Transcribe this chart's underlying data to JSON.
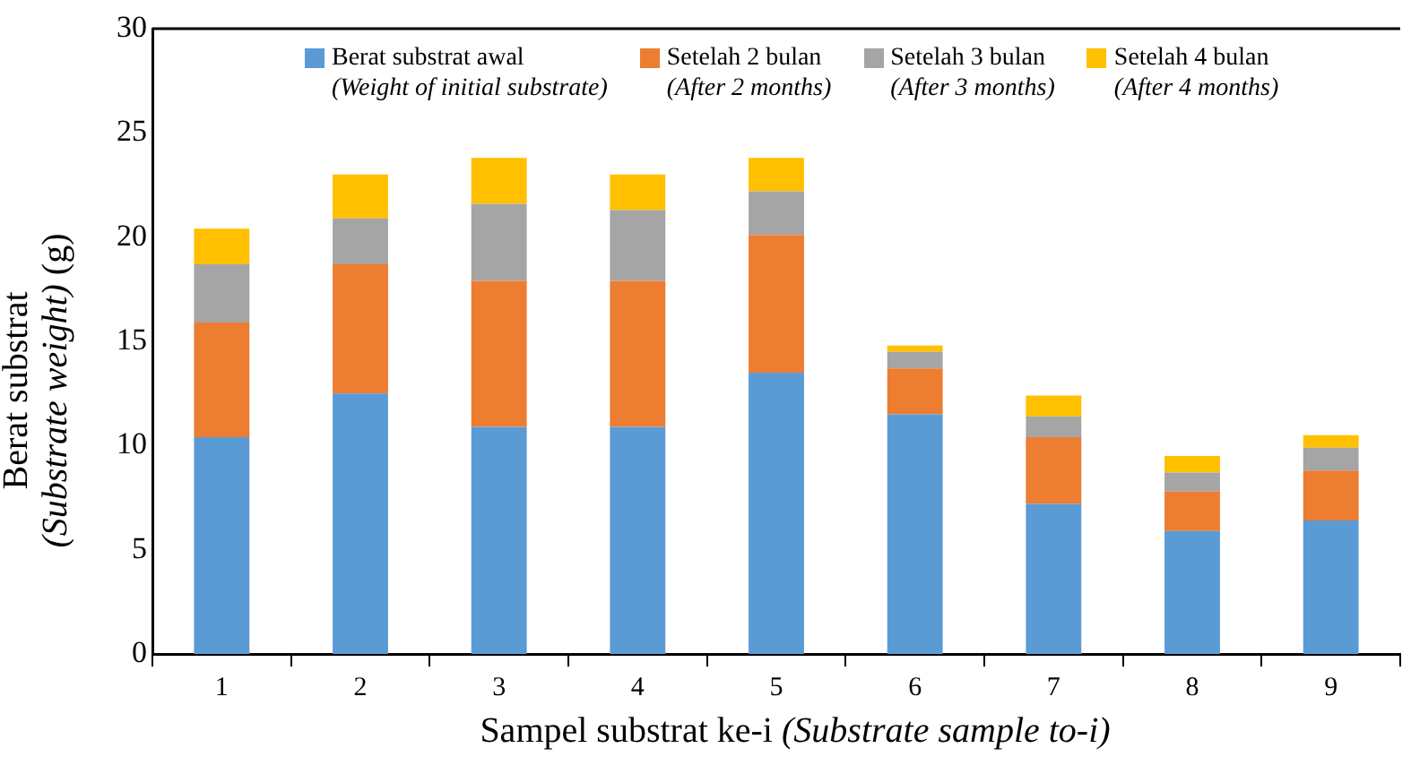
{
  "chart_data": {
    "type": "bar",
    "stacked": true,
    "xlabel": "Sampel substrat ke-i (Substrate sample to-i)",
    "ylabel": "Berat substrat (Substrate weight) (g)",
    "categories": [
      "1",
      "2",
      "3",
      "4",
      "5",
      "6",
      "7",
      "8",
      "9"
    ],
    "series": [
      {
        "name": "Berat substrat awal\n(Weight of initial substrate)",
        "color": "#5b9bd5",
        "values": [
          10.4,
          12.5,
          10.9,
          10.9,
          13.5,
          11.5,
          7.2,
          5.9,
          6.4
        ]
      },
      {
        "name": "Setelah 2 bulan\n(After 2 months)",
        "color": "#ed7d31",
        "values": [
          5.5,
          6.2,
          7.0,
          7.0,
          6.6,
          2.2,
          3.2,
          1.9,
          2.4
        ]
      },
      {
        "name": "Setelah 3 bulan\n(After 3 months)",
        "color": "#a5a5a5",
        "values": [
          2.8,
          2.2,
          3.7,
          3.4,
          2.1,
          0.8,
          1.0,
          0.9,
          1.1
        ]
      },
      {
        "name": "Setelah 4 bulan\n(After 4 months)",
        "color": "#ffc000",
        "values": [
          1.7,
          2.1,
          2.2,
          1.7,
          1.6,
          0.3,
          1.0,
          0.8,
          0.6
        ]
      }
    ],
    "ylim": [
      0,
      30
    ],
    "yticks": [
      0,
      5,
      10,
      15,
      20,
      25,
      30
    ],
    "grid": false,
    "legend": "top"
  }
}
